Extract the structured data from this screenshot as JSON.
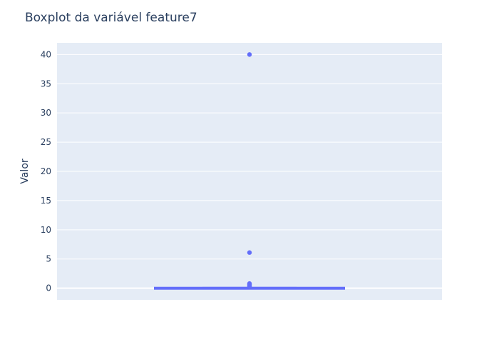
{
  "chart_data": {
    "type": "box",
    "title": "Boxplot da variável feature7",
    "xlabel": "",
    "ylabel": "Valor",
    "ylim": [
      -2,
      42
    ],
    "y_ticks": [
      0,
      5,
      10,
      15,
      20,
      25,
      30,
      35,
      40
    ],
    "grid": true,
    "legend": "none",
    "series": [
      {
        "min": 0,
        "q1": 0,
        "median": 0,
        "q3": 0.05,
        "max": 0.1,
        "outliers": [
          0.2,
          0.35,
          0.5,
          0.65,
          0.8,
          6.1,
          40
        ]
      }
    ]
  },
  "colors": {
    "plot_bg": "#e5ecf6",
    "grid": "#ffffff",
    "box": "#636efa",
    "text": "#2a3f5f"
  }
}
